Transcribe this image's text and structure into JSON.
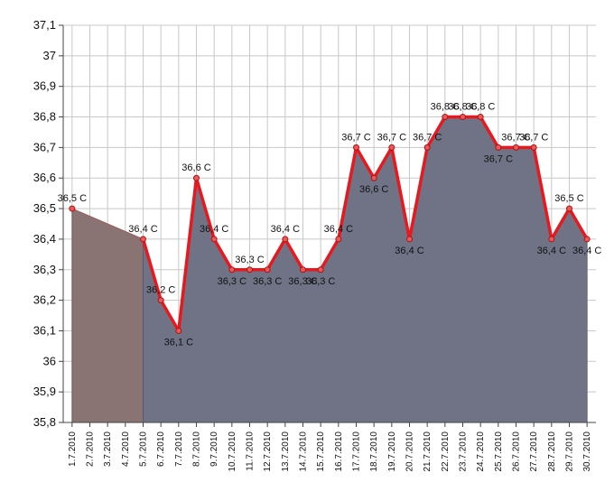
{
  "chart_data": {
    "type": "area",
    "title": "",
    "xlabel": "",
    "ylabel": "",
    "ylim": [
      35.8,
      37.1
    ],
    "y_ticks": [
      "35,8",
      "35,9",
      "36",
      "36,1",
      "36,2",
      "36,3",
      "36,4",
      "36,5",
      "36,6",
      "36,7",
      "36,8",
      "36,9",
      "37",
      "37,1"
    ],
    "categories": [
      "1.7.2010",
      "2.7.2010",
      "3.7.2010",
      "4.7.2010",
      "5.7.2010",
      "6.7.2010",
      "7.7.2010",
      "8.7.2010",
      "9.7.2010",
      "10.7.2010",
      "11.7.2010",
      "12.7.2010",
      "13.7.2010",
      "14.7.2010",
      "15.7.2010",
      "16.7.2010",
      "17.7.2010",
      "18.7.2010",
      "19.7.2010",
      "20.7.2010",
      "21.7.2010",
      "22.7.2010",
      "23.7.2010",
      "24.7.2010",
      "25.7.2010",
      "26.7.2010",
      "27.7.2010",
      "28.7.2010",
      "29.7.2010",
      "30.7.2010"
    ],
    "grid": true,
    "legend": "none",
    "series": [
      {
        "points": [
          {
            "x": "1.7.2010",
            "y": 36.5,
            "label": "36,5 C"
          },
          {
            "x": "5.7.2010",
            "y": 36.4,
            "label": "36,4 C"
          },
          {
            "x": "6.7.2010",
            "y": 36.2,
            "label": "36,2 C"
          },
          {
            "x": "7.7.2010",
            "y": 36.1,
            "label": "36,1 C"
          },
          {
            "x": "8.7.2010",
            "y": 36.6,
            "label": "36,6 C"
          },
          {
            "x": "9.7.2010",
            "y": 36.4,
            "label": "36,4 C"
          },
          {
            "x": "10.7.2010",
            "y": 36.3,
            "label": "36,3 C"
          },
          {
            "x": "11.7.2010",
            "y": 36.3,
            "label": "36,3 C"
          },
          {
            "x": "12.7.2010",
            "y": 36.3,
            "label": "36,3 C"
          },
          {
            "x": "13.7.2010",
            "y": 36.4,
            "label": "36,4 C"
          },
          {
            "x": "14.7.2010",
            "y": 36.3,
            "label": "36,3 C"
          },
          {
            "x": "15.7.2010",
            "y": 36.3,
            "label": "36,3 C"
          },
          {
            "x": "16.7.2010",
            "y": 36.4,
            "label": "36,4 C"
          },
          {
            "x": "17.7.2010",
            "y": 36.7,
            "label": "36,7 C"
          },
          {
            "x": "18.7.2010",
            "y": 36.6,
            "label": "36,6 C"
          },
          {
            "x": "19.7.2010",
            "y": 36.7,
            "label": "36,7 C"
          },
          {
            "x": "20.7.2010",
            "y": 36.4,
            "label": "36,4 C"
          },
          {
            "x": "21.7.2010",
            "y": 36.7,
            "label": "36,7 C"
          },
          {
            "x": "22.7.2010",
            "y": 36.8,
            "label": "36,8 C"
          },
          {
            "x": "23.7.2010",
            "y": 36.8,
            "label": "36,8 C"
          },
          {
            "x": "24.7.2010",
            "y": 36.8,
            "label": "36,8 C"
          },
          {
            "x": "25.7.2010",
            "y": 36.7,
            "label": "36,7 C"
          },
          {
            "x": "26.7.2010",
            "y": 36.7,
            "label": "36,7 C"
          },
          {
            "x": "27.7.2010",
            "y": 36.7,
            "label": "36,7 C"
          },
          {
            "x": "28.7.2010",
            "y": 36.4,
            "label": "36,4 C"
          },
          {
            "x": "29.7.2010",
            "y": 36.5,
            "label": "36,5 C"
          },
          {
            "x": "30.7.2010",
            "y": 36.4,
            "label": "36,4 C"
          }
        ]
      }
    ],
    "colors": {
      "area_gap": "#8a7373",
      "area_main": "#707385",
      "line": "#e8191e",
      "marker_fill": "#e85a5a",
      "grid": "#c8c8c8",
      "axis": "#444444"
    }
  }
}
